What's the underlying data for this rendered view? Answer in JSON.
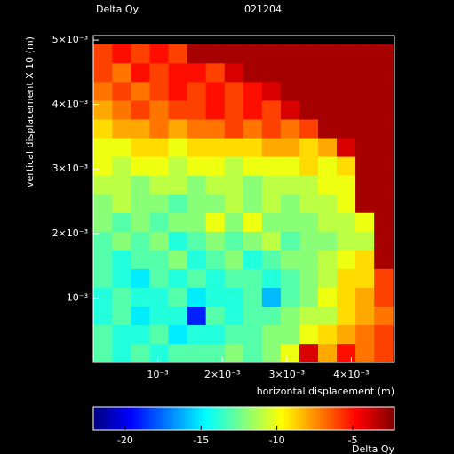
{
  "chart_data": {
    "type": "heatmap",
    "title": "Delta Qy",
    "subtitle": "021204",
    "x_label": "horizontal displacement (m)",
    "y_label": "vertical displacement X 10 (m)",
    "colorbar_label": "Delta Qy",
    "colormap": "jet",
    "background": "#000000",
    "xlim": [
      0,
      0.00467
    ],
    "ylim": [
      0,
      0.00507
    ],
    "xticks": [
      {
        "value": 0.001,
        "label": "10⁻³"
      },
      {
        "value": 0.002,
        "label": "2×10⁻³"
      },
      {
        "value": 0.003,
        "label": "3×10⁻³"
      },
      {
        "value": 0.004,
        "label": "4×10⁻³"
      }
    ],
    "yticks": [
      {
        "value": 0.001,
        "label": "10⁻³"
      },
      {
        "value": 0.002,
        "label": "2×10⁻³"
      },
      {
        "value": 0.003,
        "label": "3×10⁻³"
      },
      {
        "value": 0.004,
        "label": "4×10⁻³"
      },
      {
        "value": 0.005,
        "label": "5×10⁻³"
      }
    ],
    "clim": [
      -22.1,
      -2.25
    ],
    "cticks": [
      -20,
      -15,
      -10,
      -5
    ],
    "x": [
      0.00015,
      0.00044,
      0.00073,
      0.00102,
      0.00131,
      0.0016,
      0.00189,
      0.00218,
      0.00247,
      0.00276,
      0.00305,
      0.00334,
      0.00363,
      0.00392,
      0.00421,
      0.0045
    ],
    "y": [
      0.00015,
      0.00044,
      0.00073,
      0.00102,
      0.00131,
      0.0016,
      0.00189,
      0.00218,
      0.00247,
      0.00276,
      0.00305,
      0.00334,
      0.00363,
      0.00392,
      0.00421,
      0.0045,
      0.00479
    ],
    "values": [
      [
        -13,
        -14,
        -13,
        -14,
        -13,
        -13,
        -13,
        -12,
        -13,
        -12,
        -10,
        -4,
        -8,
        -5,
        -7,
        -6
      ],
      [
        -13,
        -14,
        -14,
        -13,
        -15,
        -14,
        -14,
        -13,
        -13,
        -12,
        -12,
        -10,
        -9,
        -8,
        -7,
        -6
      ],
      [
        -14,
        -13,
        -15,
        -14,
        -14,
        -19,
        -13,
        -14,
        -13,
        -13,
        -12,
        -11,
        -11,
        -9,
        -8,
        -7
      ],
      [
        -14,
        -13,
        -14,
        -14,
        -13,
        -15,
        -14,
        -14,
        -13,
        -16,
        -13,
        -12,
        -10,
        -9,
        -8,
        -6
      ],
      [
        -13,
        -14,
        -15,
        -13,
        -14,
        -13,
        -14,
        -13,
        -13,
        -14,
        -13,
        -12,
        -11,
        -9,
        -9,
        -6
      ],
      [
        -13,
        -14,
        -13,
        -13,
        -12,
        -14,
        -13,
        -12,
        -14,
        -13,
        -12,
        -12,
        -11,
        -10,
        -9,
        -3
      ],
      [
        -13,
        -12,
        -13,
        -12,
        -14,
        -13,
        -12,
        -13,
        -12,
        -11,
        -13,
        -12,
        -12,
        -11,
        -11,
        -3
      ],
      [
        -12,
        -13,
        -12,
        -13,
        -12,
        -12,
        -10,
        -12,
        -10,
        -12,
        -12,
        -12,
        -11,
        -11,
        -10,
        -3
      ],
      [
        -12,
        -11,
        -12,
        -12,
        -13,
        -12,
        -12,
        -11,
        -12,
        -11,
        -12,
        -11,
        -11,
        -10,
        -3,
        -3
      ],
      [
        -11,
        -11,
        -12,
        -11,
        -11,
        -12,
        -11,
        -11,
        -12,
        -11,
        -11,
        -11,
        -10,
        -10,
        -3,
        -3
      ],
      [
        -10,
        -11,
        -10,
        -10,
        -11,
        -10,
        -10,
        -11,
        -10,
        -10,
        -10,
        -9,
        -10,
        -9,
        -3,
        -3
      ],
      [
        -10,
        -10,
        -9,
        -9,
        -10,
        -9,
        -9,
        -9,
        -9,
        -8,
        -8,
        -9,
        -8,
        -4,
        -3,
        -3
      ],
      [
        -9,
        -8,
        -8,
        -7,
        -8,
        -7,
        -7,
        -6,
        -7,
        -6,
        -7,
        -6,
        -3,
        -3,
        -3,
        -3
      ],
      [
        -8,
        -7,
        -6,
        -7,
        -6,
        -6,
        -5,
        -6,
        -5,
        -6,
        -4,
        -3,
        -3,
        -3,
        -3,
        -3
      ],
      [
        -7,
        -6,
        -7,
        -6,
        -5,
        -6,
        -5,
        -6,
        -5,
        -4,
        -3,
        -3,
        -3,
        -3,
        -3,
        -3
      ],
      [
        -6,
        -7,
        -5,
        -6,
        -5,
        -5,
        -6,
        -4,
        -3,
        -3,
        -3,
        -3,
        -3,
        -3,
        -3,
        -3
      ],
      [
        -6,
        -5,
        -6,
        -5,
        -6,
        -3,
        -3,
        -3,
        -3,
        -3,
        -3,
        -3,
        -3,
        -3,
        -3,
        -3
      ]
    ]
  }
}
